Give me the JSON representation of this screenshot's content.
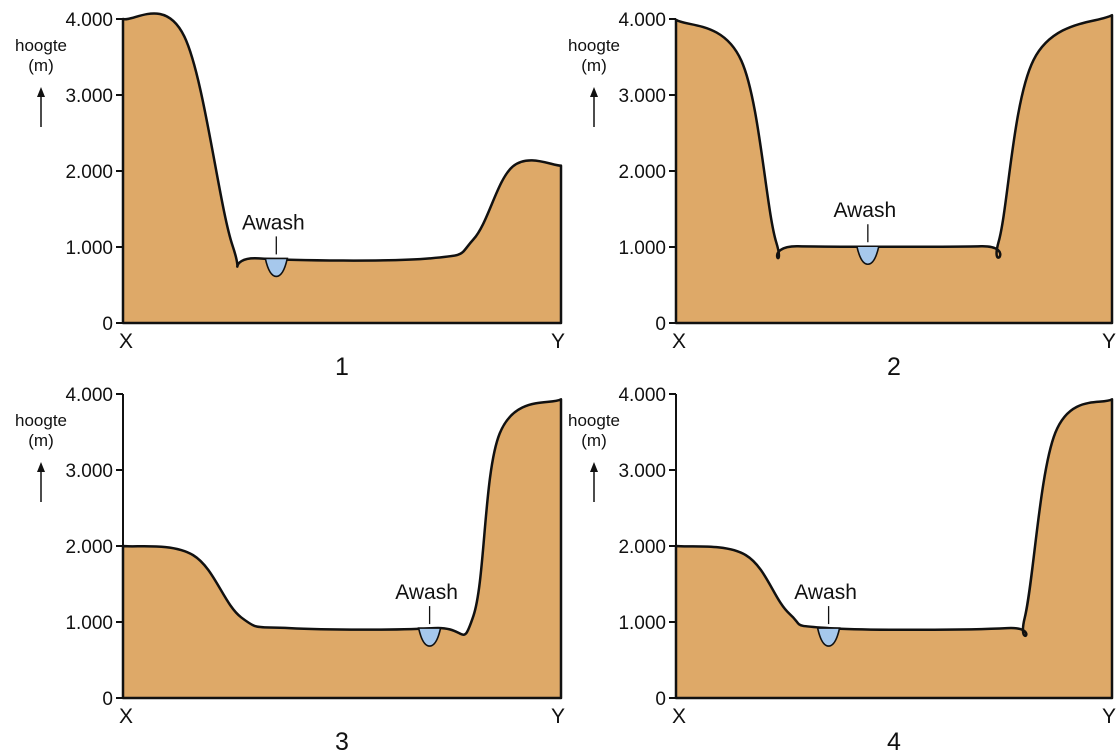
{
  "colors": {
    "terrain": "#dea968",
    "river": "#a6c8ec",
    "outline": "#111111"
  },
  "axis": {
    "title_line1": "hoogte",
    "title_line2": "(m)",
    "ticks": [
      "4.000",
      "3.000",
      "2.000",
      "1.000",
      "0"
    ],
    "tick_values": [
      4000,
      3000,
      2000,
      1000,
      0
    ],
    "x_start_label": "X",
    "x_end_label": "Y"
  },
  "river_label": "Awash",
  "panels": [
    {
      "number": "1",
      "profile": [
        [
          0,
          4000
        ],
        [
          0.14,
          3770
        ],
        [
          0.25,
          1020
        ],
        [
          0.31,
          850
        ],
        [
          0.7,
          850
        ],
        [
          0.8,
          1100
        ],
        [
          0.89,
          2060
        ],
        [
          1,
          2070
        ]
      ],
      "river_position": 0.35
    },
    {
      "number": "2",
      "profile": [
        [
          0,
          3990
        ],
        [
          0.15,
          3450
        ],
        [
          0.23,
          1060
        ],
        [
          0.28,
          1010
        ],
        [
          0.7,
          1010
        ],
        [
          0.74,
          1070
        ],
        [
          0.82,
          3460
        ],
        [
          1,
          4050
        ]
      ],
      "river_position": 0.44
    },
    {
      "number": "3",
      "profile": [
        [
          0,
          2000
        ],
        [
          0.16,
          1880
        ],
        [
          0.27,
          1060
        ],
        [
          0.38,
          920
        ],
        [
          0.71,
          920
        ],
        [
          0.8,
          1080
        ],
        [
          0.86,
          3480
        ],
        [
          1,
          3930
        ]
      ],
      "river_position": 0.7
    },
    {
      "number": "4",
      "profile": [
        [
          0,
          2000
        ],
        [
          0.16,
          1880
        ],
        [
          0.26,
          1110
        ],
        [
          0.35,
          920
        ],
        [
          0.76,
          920
        ],
        [
          0.8,
          1060
        ],
        [
          0.87,
          3490
        ],
        [
          1,
          3930
        ]
      ],
      "river_position": 0.35
    }
  ]
}
